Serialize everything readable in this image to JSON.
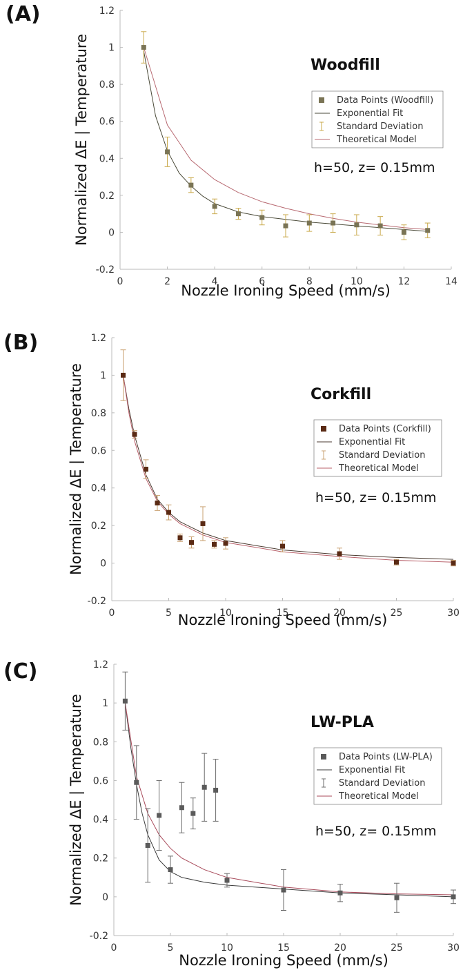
{
  "chart_data": [
    {
      "type": "scatter",
      "panel_label": "(A)",
      "title": "Woodfill",
      "xlabel": "Nozzle Ironing Speed (mm/s)",
      "ylabel": "Normalized ΔE | Temperature",
      "xlim": [
        0,
        14
      ],
      "ylim": [
        -0.2,
        1.2
      ],
      "xticks": [
        0,
        2,
        4,
        6,
        8,
        10,
        12,
        14
      ],
      "yticks": [
        -0.2,
        0,
        0.2,
        0.4,
        0.6,
        0.8,
        1,
        1.2
      ],
      "ytick_labels": [
        "-0.2",
        "0",
        "0.2",
        "0.4",
        "0.6",
        "0.8",
        "1",
        "1.2"
      ],
      "annotation": "h=50, z= 0.15mm",
      "legend": [
        "Data Points (Woodfill)",
        "Exponential Fit",
        "Standard Deviation",
        "Theoretical Model"
      ],
      "legend_position": "right",
      "grid": false,
      "colors": {
        "points": "#7a7455",
        "fit": "#4a4a38",
        "error": "#c9a94a",
        "model": "#b86a72"
      },
      "series": [
        {
          "kind": "points",
          "x": [
            1,
            2,
            3,
            4,
            5,
            6,
            7,
            8,
            9,
            10,
            11,
            12,
            13
          ],
          "y": [
            1.0,
            0.435,
            0.255,
            0.14,
            0.1,
            0.08,
            0.035,
            0.05,
            0.05,
            0.04,
            0.035,
            0.0,
            0.01
          ],
          "err": [
            0.085,
            0.08,
            0.04,
            0.04,
            0.03,
            0.04,
            0.06,
            0.045,
            0.05,
            0.055,
            0.05,
            0.04,
            0.04
          ]
        },
        {
          "kind": "line",
          "x": [
            1,
            1.5,
            2,
            2.5,
            3,
            3.5,
            4,
            5,
            6,
            7,
            8,
            9,
            10,
            11,
            12,
            13
          ],
          "y": [
            0.98,
            0.63,
            0.44,
            0.32,
            0.25,
            0.195,
            0.155,
            0.11,
            0.085,
            0.07,
            0.055,
            0.045,
            0.035,
            0.025,
            0.015,
            0.005
          ]
        },
        {
          "kind": "line",
          "role": "model",
          "x": [
            1,
            2,
            3,
            4,
            5,
            6,
            7,
            8,
            9,
            10,
            11,
            12,
            13
          ],
          "y": [
            1.0,
            0.58,
            0.39,
            0.285,
            0.215,
            0.165,
            0.13,
            0.1,
            0.075,
            0.055,
            0.04,
            0.025,
            0.015
          ]
        }
      ]
    },
    {
      "type": "scatter",
      "panel_label": "(B)",
      "title": "Corkfill",
      "xlabel": "Nozzle Ironing Speed (mm/s)",
      "ylabel": "Normalized ΔE | Temperature",
      "xlim": [
        0,
        30
      ],
      "ylim": [
        -0.2,
        1.2
      ],
      "xticks": [
        0,
        5,
        10,
        15,
        20,
        25,
        30
      ],
      "yticks": [
        -0.2,
        0,
        0.2,
        0.4,
        0.6,
        0.8,
        1,
        1.2
      ],
      "ytick_labels": [
        "-0.2",
        "0",
        "0.2",
        "0.4",
        "0.6",
        "0.8",
        "1",
        "1.2"
      ],
      "annotation": "h=50, z= 0.15mm",
      "legend": [
        "Data Points (Corkfill)",
        "Exponential Fit",
        "Standard Deviation",
        "Theoretical Model"
      ],
      "legend_position": "right",
      "grid": false,
      "colors": {
        "points": "#5a2a14",
        "fit": "#4a3a30",
        "error": "#c9a070",
        "model": "#b8606a"
      },
      "series": [
        {
          "kind": "points",
          "x": [
            1,
            2,
            3,
            4,
            5,
            6,
            7,
            8,
            9,
            10,
            15,
            20,
            25,
            30
          ],
          "y": [
            1.0,
            0.685,
            0.5,
            0.32,
            0.27,
            0.135,
            0.11,
            0.21,
            0.1,
            0.105,
            0.09,
            0.05,
            0.005,
            0.0
          ],
          "err": [
            0.135,
            0.02,
            0.05,
            0.04,
            0.04,
            0.02,
            0.03,
            0.09,
            0.02,
            0.03,
            0.03,
            0.03,
            0.015,
            0.015
          ]
        },
        {
          "kind": "line",
          "x": [
            1,
            1.5,
            2,
            3,
            4,
            5,
            6,
            8,
            10,
            15,
            20,
            25,
            30
          ],
          "y": [
            1.0,
            0.82,
            0.68,
            0.47,
            0.34,
            0.27,
            0.22,
            0.16,
            0.12,
            0.07,
            0.045,
            0.03,
            0.02
          ]
        },
        {
          "kind": "line",
          "role": "model",
          "x": [
            1,
            1.5,
            2,
            3,
            4,
            5,
            6,
            8,
            10,
            15,
            20,
            25,
            30
          ],
          "y": [
            1.0,
            0.8,
            0.65,
            0.45,
            0.33,
            0.26,
            0.21,
            0.15,
            0.11,
            0.06,
            0.035,
            0.015,
            0.005
          ]
        }
      ]
    },
    {
      "type": "scatter",
      "panel_label": "(C)",
      "title": "LW-PLA",
      "xlabel": "Nozzle Ironing Speed (mm/s)",
      "ylabel": "Normalized ΔE | Temperature",
      "xlim": [
        0,
        30
      ],
      "ylim": [
        -0.2,
        1.2
      ],
      "xticks": [
        0,
        5,
        10,
        15,
        20,
        25,
        30
      ],
      "yticks": [
        -0.2,
        0,
        0.2,
        0.4,
        0.6,
        0.8,
        1,
        1.2
      ],
      "ytick_labels": [
        "-0.2",
        "0",
        "0.2",
        "0.4",
        "0.6",
        "0.8",
        "1",
        "1.2"
      ],
      "annotation": "h=50, z= 0.15mm",
      "legend": [
        "Data Points (LW-PLA)",
        "Exponential Fit",
        "Standard Deviation",
        "Theoretical Model"
      ],
      "legend_position": "right",
      "grid": false,
      "colors": {
        "points": "#5a5a5a",
        "fit": "#3a3a3a",
        "error": "#6a6a6a",
        "model": "#a84a5a"
      },
      "series": [
        {
          "kind": "points",
          "x": [
            1,
            2,
            3,
            4,
            5,
            6,
            7,
            8,
            9,
            10,
            15,
            20,
            25,
            30
          ],
          "y": [
            1.01,
            0.59,
            0.265,
            0.42,
            0.14,
            0.46,
            0.43,
            0.565,
            0.55,
            0.085,
            0.035,
            0.02,
            -0.005,
            0.0
          ],
          "err": [
            0.15,
            0.19,
            0.19,
            0.18,
            0.07,
            0.13,
            0.08,
            0.175,
            0.16,
            0.035,
            0.105,
            0.045,
            0.075,
            0.035
          ]
        },
        {
          "kind": "line",
          "x": [
            1,
            1.5,
            2,
            2.5,
            3,
            4,
            5,
            6,
            8,
            10,
            15,
            20,
            25,
            30
          ],
          "y": [
            1.0,
            0.77,
            0.58,
            0.43,
            0.32,
            0.19,
            0.13,
            0.1,
            0.075,
            0.06,
            0.04,
            0.02,
            0.01,
            0.0
          ]
        },
        {
          "kind": "line",
          "role": "model",
          "x": [
            1,
            2,
            3,
            4,
            5,
            6,
            8,
            10,
            15,
            20,
            25,
            30
          ],
          "y": [
            1.0,
            0.62,
            0.43,
            0.32,
            0.25,
            0.2,
            0.14,
            0.1,
            0.05,
            0.025,
            0.015,
            0.01
          ]
        }
      ]
    }
  ]
}
